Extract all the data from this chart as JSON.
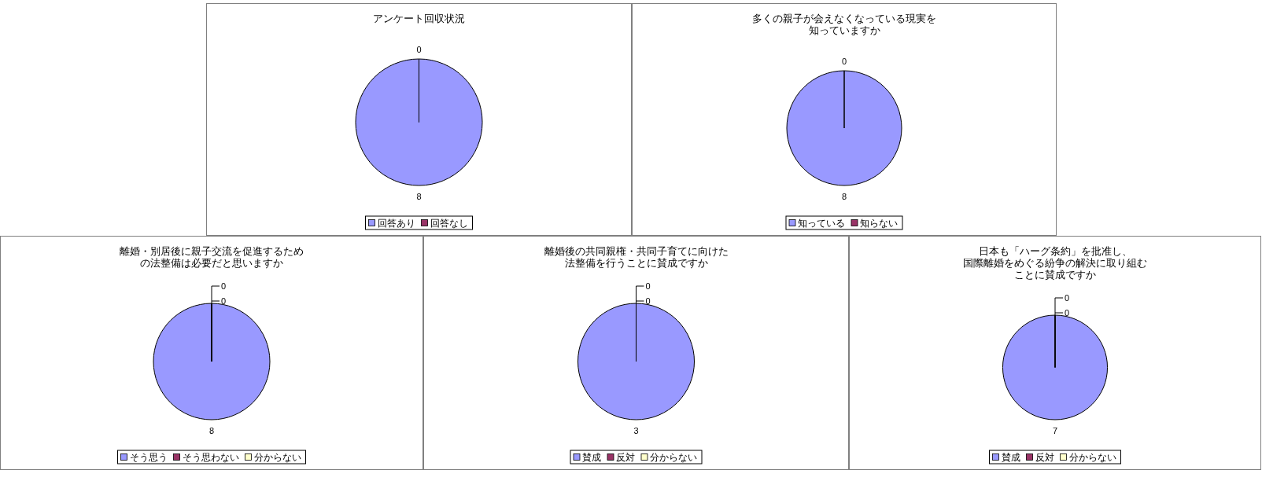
{
  "chart_data": [
    {
      "type": "pie",
      "title": "アンケート回収状況",
      "categories": [
        "回答あり",
        "回答なし"
      ],
      "values": [
        8,
        0
      ],
      "value_labels": [
        "8",
        "0"
      ],
      "colors": [
        "#9999ff",
        "#993366"
      ],
      "legend": "bottom"
    },
    {
      "type": "pie",
      "title": "多くの親子が会えなくなっている現実を知っていますか",
      "categories": [
        "知っている",
        "知らない"
      ],
      "values": [
        8,
        0
      ],
      "value_labels": [
        "8",
        "0"
      ],
      "colors": [
        "#9999ff",
        "#993366"
      ],
      "legend": "bottom"
    },
    {
      "type": "pie",
      "title": "離婚・別居後に親子交流を促進するための法整備は必要だと思いますか",
      "categories": [
        "そう思う",
        "そう思わない",
        "分からない"
      ],
      "values": [
        8,
        0,
        0
      ],
      "value_labels": [
        "8",
        "0",
        "0"
      ],
      "colors": [
        "#9999ff",
        "#993366",
        "#ffffcc"
      ],
      "legend": "bottom"
    },
    {
      "type": "pie",
      "title": "離婚後の共同親権・共同子育てに向けた法整備を行うことに賛成ですか",
      "categories": [
        "賛成",
        "反対",
        "分からない"
      ],
      "values": [
        3,
        0,
        0
      ],
      "value_labels": [
        "3",
        "0",
        "0"
      ],
      "colors": [
        "#9999ff",
        "#993366",
        "#ffffcc"
      ],
      "legend": "bottom"
    },
    {
      "type": "pie",
      "title": "日本も「ハーグ条約」を批准し、国際離婚をめぐる紛争の解決に取り組むことに賛成ですか",
      "categories": [
        "賛成",
        "反対",
        "分からない"
      ],
      "values": [
        7,
        0,
        0
      ],
      "value_labels": [
        "7",
        "0",
        "0"
      ],
      "colors": [
        "#9999ff",
        "#993366",
        "#ffffcc"
      ],
      "legend": "bottom"
    }
  ]
}
